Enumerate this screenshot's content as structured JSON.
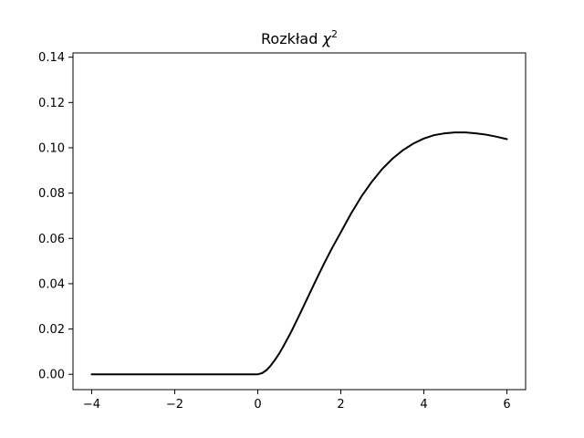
{
  "chart_data": {
    "type": "line",
    "title": "Rozkład ",
    "title_symbol": "χ",
    "title_superscript": "2",
    "xlabel": "",
    "ylabel": "",
    "xlim": [
      -4.45,
      6.45
    ],
    "ylim": [
      -0.00676,
      0.14188
    ],
    "xticks": [
      -4,
      -2,
      0,
      2,
      4,
      6
    ],
    "xtick_labels": [
      "−4",
      "−2",
      "0",
      "2",
      "4",
      "6"
    ],
    "yticks": [
      0.0,
      0.02,
      0.04,
      0.06,
      0.08,
      0.1,
      0.12,
      0.14
    ],
    "ytick_labels": [
      "0.00",
      "0.02",
      "0.04",
      "0.06",
      "0.08",
      "0.10",
      "0.12",
      "0.14"
    ],
    "grid": false,
    "series": [
      {
        "color": "#000000",
        "x": [
          -4,
          -3.5,
          -3,
          -2.5,
          -2,
          -1.5,
          -1,
          -0.5,
          0,
          0.1,
          0.2,
          0.3,
          0.4,
          0.5,
          0.6,
          0.8,
          1.0,
          1.2,
          1.4,
          1.6,
          1.8,
          2.0,
          2.25,
          2.5,
          2.75,
          3.0,
          3.25,
          3.5,
          3.75,
          4.0,
          4.25,
          4.5,
          4.75,
          5.0,
          5.25,
          5.5,
          5.75,
          6.0
        ],
        "y": [
          0,
          0,
          0,
          0,
          0,
          0,
          0,
          0,
          0,
          0.0005,
          0.0017,
          0.0036,
          0.006,
          0.0087,
          0.0118,
          0.0186,
          0.0261,
          0.0338,
          0.0415,
          0.049,
          0.0561,
          0.0627,
          0.0711,
          0.0786,
          0.0851,
          0.0907,
          0.0953,
          0.099,
          0.1019,
          0.1041,
          0.1056,
          0.1064,
          0.1068,
          0.1068,
          0.1064,
          0.1058,
          0.1049,
          0.1038
        ]
      }
    ]
  }
}
